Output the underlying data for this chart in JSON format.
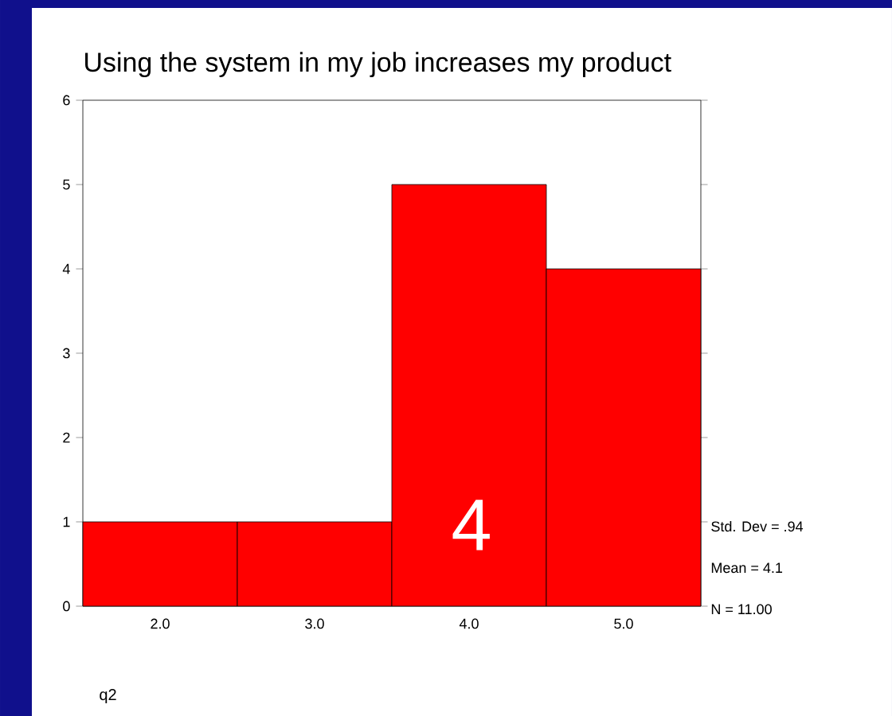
{
  "chart_data": {
    "type": "histogram",
    "title": "Using the system in my job increases my product",
    "xlabel": "q2",
    "bins": [
      1.5,
      2.5,
      3.5,
      4.5,
      5.5
    ],
    "values": [
      1,
      1,
      5,
      4
    ],
    "color": "#ff0000",
    "xlim": [
      1.5,
      5.5
    ],
    "ylim": [
      0,
      6
    ],
    "xticks": [
      {
        "value": 2,
        "label": "2.0"
      },
      {
        "value": 3,
        "label": "3.0"
      },
      {
        "value": 4,
        "label": "4.0"
      },
      {
        "value": 5,
        "label": "5.0"
      }
    ],
    "yticks": [
      0,
      1,
      2,
      3,
      4,
      5,
      6
    ],
    "annotations": [
      "Std. Dev = .94",
      "Mean = 4.1",
      "N = 11.00",
      "4"
    ]
  }
}
